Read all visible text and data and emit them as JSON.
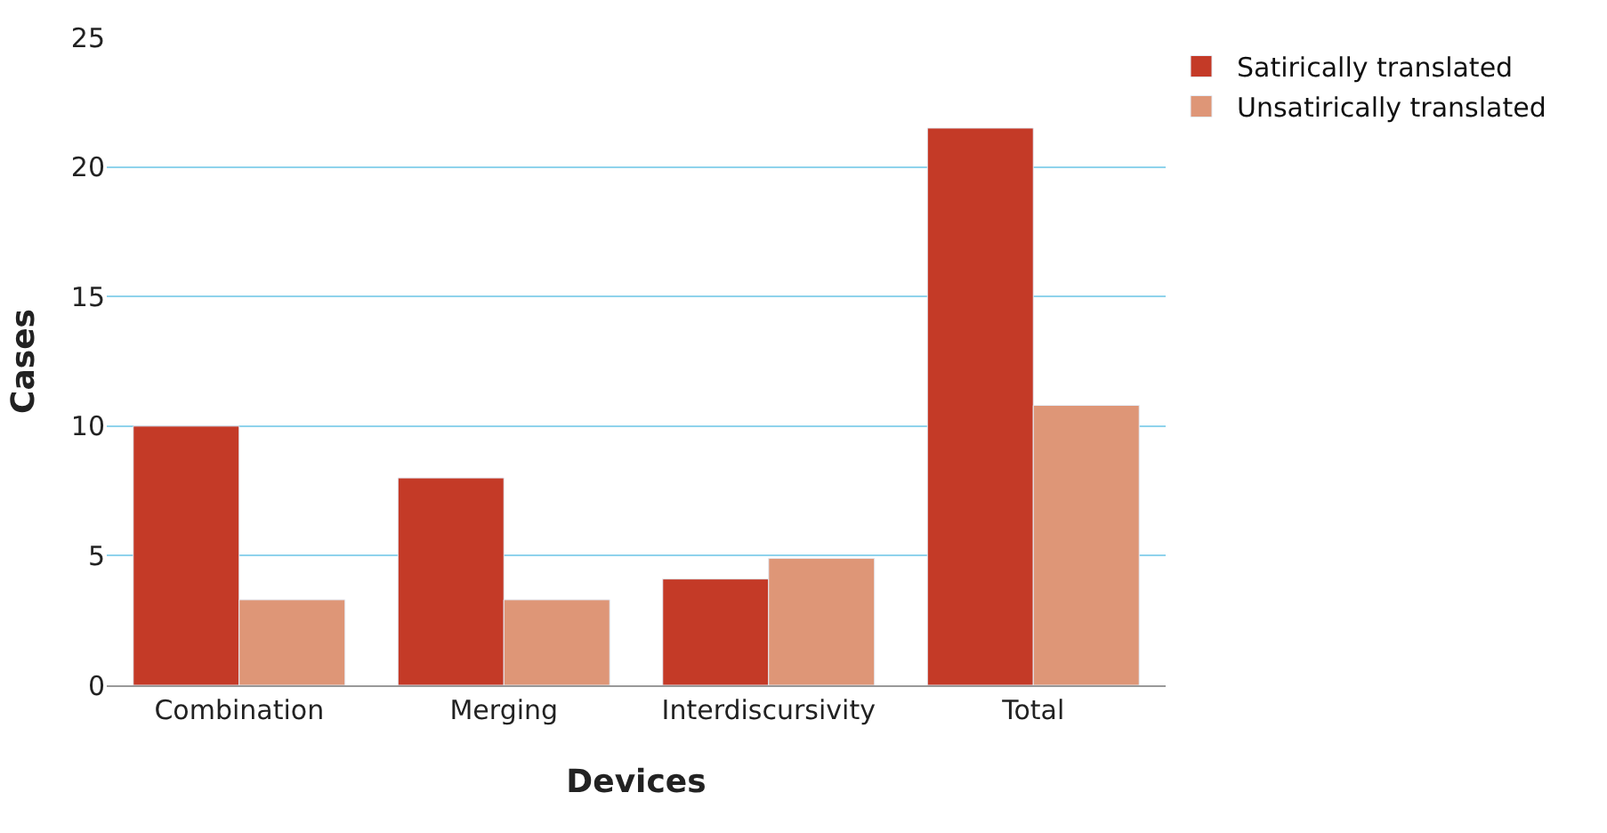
{
  "chart_data": {
    "type": "bar",
    "xlabel": "Devices",
    "ylabel": "Cases",
    "categories": [
      "Combination",
      "Merging",
      "Interdiscursivity",
      "Total"
    ],
    "series": [
      {
        "name": "Satirically translated",
        "color": "#c43a27",
        "values": [
          10,
          8,
          4.1,
          21.5
        ]
      },
      {
        "name": "Unsatirically translated",
        "color": "#de9677",
        "values": [
          3.3,
          3.3,
          4.9,
          10.8
        ]
      }
    ],
    "ylim": [
      0,
      25
    ],
    "yticks": [
      0,
      5,
      10,
      15,
      20,
      25
    ],
    "grid": "y",
    "legend": "top right"
  }
}
